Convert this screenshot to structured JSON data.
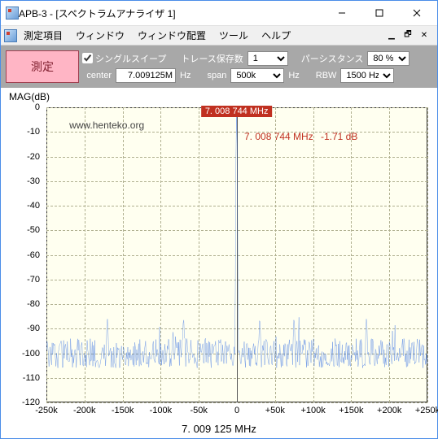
{
  "window": {
    "title": "APB-3 - [スペクトラムアナライザ 1]"
  },
  "menu": {
    "items": [
      "測定項目",
      "ウィンドウ",
      "ウィンドウ配置",
      "ツール",
      "ヘルプ"
    ]
  },
  "controls": {
    "measure_btn": "測定",
    "single_sweep_label": "シングルスイープ",
    "single_sweep_checked": true,
    "trace_count_label": "トレース保存数",
    "trace_count_value": "1",
    "persistence_label": "パーシスタンス",
    "persistence_value": "80 %",
    "center_label": "center",
    "center_value": "7.009125M",
    "center_unit": "Hz",
    "span_label": "span",
    "span_value": "500k",
    "span_unit": "Hz",
    "rbw_label": "RBW",
    "rbw_value": "1500 Hz"
  },
  "chart": {
    "ylabel": "MAG(dB)",
    "xlabel": "7. 009 125 MHz",
    "watermark": "www.henteko.org",
    "peak_tag": "7. 008 744 MHz",
    "readout_freq": "7. 008 744 MHz",
    "readout_db": "-1.71 dB",
    "yticks": [
      0,
      -10,
      -20,
      -30,
      -40,
      -50,
      -60,
      -70,
      -80,
      -90,
      -100,
      -110,
      -120
    ],
    "xticks": [
      "-250k",
      "-200k",
      "-150k",
      "-100k",
      "-50k",
      "0",
      "+50k",
      "+100k",
      "+150k",
      "+200k",
      "+250k"
    ],
    "ylim": [
      -120,
      0
    ],
    "xlim": [
      -250,
      250
    ],
    "trace_color": "#2060e0",
    "grid_color": "#b0b090",
    "bg_color": "#fffff0",
    "peak_x": -0.381,
    "peak_y": -1.71,
    "noise_floor_mean": -100,
    "noise_floor_var": 6
  }
}
